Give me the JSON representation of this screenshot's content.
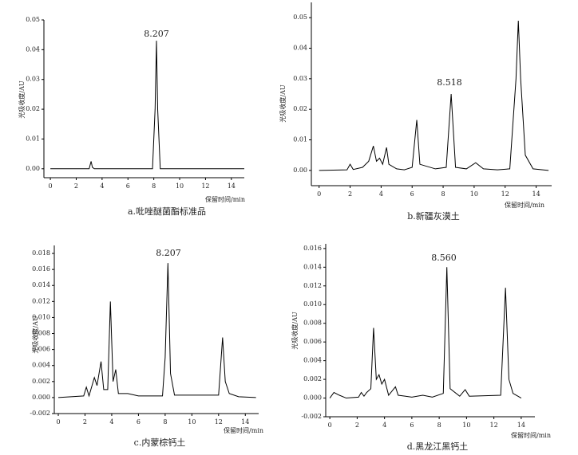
{
  "chart_data": [
    {
      "type": "line",
      "title": "a.吡唑醚菌酯标准品",
      "xlabel": "保留时间/min",
      "ylabel": "光吸收度/AU",
      "annotation": "8.207",
      "color": "#000000",
      "x": [
        0,
        3.0,
        3.15,
        3.25,
        3.4,
        7.9,
        8.1,
        8.207,
        8.3,
        8.5,
        15
      ],
      "series": [
        {
          "name": "a",
          "color": "#000000",
          "values": [
            0,
            0,
            0.0025,
            0.0005,
            0,
            0,
            0.02,
            0.043,
            0.02,
            0,
            0
          ]
        }
      ],
      "xlim": [
        -0.5,
        15
      ],
      "ylim": [
        -0.003,
        0.05
      ],
      "xticks": [
        0,
        2,
        4,
        6,
        8,
        10,
        12,
        14
      ],
      "yticks": [
        {
          "value": 0,
          "label": "0.00"
        },
        {
          "value": 0.01,
          "label": "0.01"
        },
        {
          "value": 0.02,
          "label": "0.02"
        },
        {
          "value": 0.03,
          "label": "0.03"
        },
        {
          "value": 0.04,
          "label": "0.04"
        },
        {
          "value": 0.05,
          "label": "0.05"
        }
      ]
    },
    {
      "type": "line",
      "title": "b.新疆灰漠土",
      "xlabel": "保留时间/min",
      "ylabel": "光吸收度/AU",
      "annotation": "8.518",
      "color": "#000000",
      "x": [
        0,
        1.8,
        2.0,
        2.2,
        2.8,
        3.2,
        3.5,
        3.7,
        3.9,
        4.1,
        4.35,
        4.5,
        5,
        5.5,
        6.0,
        6.3,
        6.5,
        7.5,
        8.2,
        8.518,
        8.8,
        9.5,
        10.1,
        10.6,
        11.5,
        12.3,
        12.7,
        12.85,
        13.0,
        13.3,
        13.8,
        14.8
      ],
      "series": [
        {
          "name": "b",
          "color": "#000000",
          "values": [
            0,
            0.0002,
            0.002,
            0.0003,
            0.001,
            0.003,
            0.008,
            0.003,
            0.004,
            0.002,
            0.0075,
            0.002,
            0.0005,
            0.0002,
            0.001,
            0.0165,
            0.002,
            0.0005,
            0.001,
            0.025,
            0.001,
            0.0005,
            0.0025,
            0.0005,
            0.0002,
            0.0005,
            0.03,
            0.049,
            0.03,
            0.005,
            0.0005,
            0
          ]
        }
      ],
      "xlim": [
        -0.5,
        15
      ],
      "ylim": [
        -0.005,
        0.055
      ],
      "xticks": [
        0,
        2,
        4,
        6,
        8,
        10,
        12,
        14
      ],
      "yticks": [
        {
          "value": 0,
          "label": "0.00"
        },
        {
          "value": 0.01,
          "label": "0.01"
        },
        {
          "value": 0.02,
          "label": "0.02"
        },
        {
          "value": 0.03,
          "label": "0.03"
        },
        {
          "value": 0.04,
          "label": "0.04"
        },
        {
          "value": 0.05,
          "label": "0.05"
        }
      ]
    },
    {
      "type": "line",
      "title": "c.内蒙棕钙土",
      "xlabel": "保留时间/min",
      "ylabel": "光吸收度/AU",
      "annotation": "8.207",
      "color": "#000000",
      "x": [
        0,
        1.9,
        2.1,
        2.3,
        2.7,
        2.9,
        3.2,
        3.4,
        3.7,
        3.9,
        4.1,
        4.3,
        4.5,
        5.2,
        6,
        7.8,
        8.0,
        8.207,
        8.4,
        8.7,
        10,
        11.5,
        12.0,
        12.3,
        12.5,
        12.8,
        13.5,
        14.8
      ],
      "series": [
        {
          "name": "c",
          "color": "#000000",
          "values": [
            0,
            0.0002,
            0.0013,
            0.0002,
            0.0025,
            0.0015,
            0.0045,
            0.001,
            0.001,
            0.012,
            0.002,
            0.0035,
            0.0005,
            0.0005,
            0.0002,
            0.0002,
            0.005,
            0.0168,
            0.003,
            0.0003,
            0.0003,
            0.0003,
            0.0003,
            0.0075,
            0.002,
            0.0005,
            0.0001,
            0
          ]
        }
      ],
      "xlim": [
        -0.3,
        15
      ],
      "ylim": [
        -0.002,
        0.019
      ],
      "xticks": [
        0,
        2,
        4,
        6,
        8,
        10,
        12,
        14
      ],
      "yticks": [
        {
          "value": -0.002,
          "label": "-0.002"
        },
        {
          "value": 0,
          "label": "0.000"
        },
        {
          "value": 0.002,
          "label": "0.002"
        },
        {
          "value": 0.004,
          "label": "0.004"
        },
        {
          "value": 0.006,
          "label": "0.006"
        },
        {
          "value": 0.008,
          "label": "0.008"
        },
        {
          "value": 0.01,
          "label": "0.010"
        },
        {
          "value": 0.012,
          "label": "0.012"
        },
        {
          "value": 0.014,
          "label": "0.014"
        },
        {
          "value": 0.016,
          "label": "0.016"
        },
        {
          "value": 0.018,
          "label": "0.018"
        }
      ]
    },
    {
      "type": "line",
      "title": "d.黑龙江黑钙土",
      "xlabel": "保留时间/min",
      "ylabel": "光吸收度/AU",
      "annotation": "8.560",
      "color": "#000000",
      "x": [
        0,
        0.3,
        0.7,
        1.2,
        2.1,
        2.3,
        2.5,
        2.7,
        3.0,
        3.2,
        3.4,
        3.6,
        3.8,
        4.0,
        4.3,
        4.8,
        5.0,
        6,
        6.8,
        7.5,
        8.3,
        8.56,
        8.8,
        9.5,
        9.9,
        10.2,
        12.5,
        12.85,
        13.1,
        13.4,
        14
      ],
      "series": [
        {
          "name": "d",
          "color": "#000000",
          "values": [
            0,
            0.0006,
            0.0003,
            0,
            0.0001,
            0.0006,
            0.0002,
            0.0006,
            0.001,
            0.0075,
            0.002,
            0.0025,
            0.0015,
            0.002,
            0.0003,
            0.0012,
            0.0003,
            0.0001,
            0.0003,
            0.0001,
            0.0005,
            0.014,
            0.001,
            0.0002,
            0.0009,
            0.0002,
            0.0003,
            0.0118,
            0.002,
            0.0005,
            0
          ]
        }
      ],
      "xlim": [
        -0.3,
        15
      ],
      "ylim": [
        -0.002,
        0.0165
      ],
      "xticks": [
        0,
        2,
        4,
        6,
        8,
        10,
        12,
        14
      ],
      "yticks": [
        {
          "value": -0.002,
          "label": "-0.002"
        },
        {
          "value": 0,
          "label": "0.000"
        },
        {
          "value": 0.002,
          "label": "0.002"
        },
        {
          "value": 0.004,
          "label": "0.004"
        },
        {
          "value": 0.006,
          "label": "0.006"
        },
        {
          "value": 0.008,
          "label": "0.008"
        },
        {
          "value": 0.01,
          "label": "0.010"
        },
        {
          "value": 0.012,
          "label": "0.012"
        },
        {
          "value": 0.014,
          "label": "0.014"
        },
        {
          "value": 0.016,
          "label": "0.016"
        }
      ]
    }
  ]
}
